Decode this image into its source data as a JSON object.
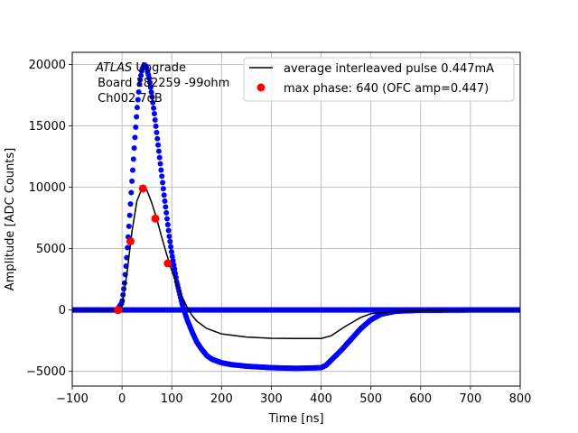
{
  "chart_data": {
    "type": "scatter",
    "xlabel": "Time [ns]",
    "ylabel": "Amplitude [ADC Counts]",
    "xlim": [
      -100,
      800
    ],
    "ylim": [
      -6200,
      21000
    ],
    "x_ticks": [
      -100,
      0,
      100,
      200,
      300,
      400,
      500,
      600,
      700,
      800
    ],
    "x_tick_labels": [
      "−100",
      "0",
      "100",
      "200",
      "300",
      "400",
      "500",
      "600",
      "700",
      "800"
    ],
    "y_ticks": [
      -5000,
      0,
      5000,
      10000,
      15000,
      20000
    ],
    "y_tick_labels": [
      "−5000",
      "0",
      "5000",
      "10000",
      "15000",
      "20000"
    ],
    "grid": true,
    "legend_placement": "top-right",
    "annotation": {
      "italic": "ATLAS",
      "line1_rest": " Upgrade",
      "line2": " Board 182259 -99ohm",
      "line3": " Ch002 7dB"
    },
    "series": [
      {
        "name": "average interleaved pulse 0.447mA",
        "style": "line",
        "color": "#000000",
        "x": [
          -100,
          -10,
          0,
          10,
          20,
          30,
          40,
          45,
          50,
          60,
          70,
          80,
          90,
          100,
          110,
          120,
          130,
          140,
          150,
          170,
          200,
          250,
          300,
          350,
          400,
          420,
          450,
          480,
          500,
          550,
          600,
          700,
          800
        ],
        "y": [
          0,
          0,
          300,
          3000,
          6400,
          8900,
          9900,
          10000,
          9750,
          8700,
          7400,
          5900,
          4500,
          3200,
          2100,
          1150,
          300,
          -400,
          -900,
          -1500,
          -1950,
          -2200,
          -2300,
          -2320,
          -2320,
          -2100,
          -1300,
          -600,
          -300,
          -120,
          -50,
          0,
          0
        ]
      },
      {
        "name": "",
        "style": "dots",
        "color": "#0000ff",
        "x": [
          -100,
          -10,
          0,
          5,
          10,
          15,
          20,
          25,
          30,
          35,
          40,
          45,
          50,
          55,
          60,
          65,
          70,
          75,
          80,
          85,
          90,
          95,
          100,
          110,
          120,
          130,
          140,
          150,
          160,
          170,
          180,
          200,
          220,
          250,
          300,
          350,
          400,
          410,
          420,
          440,
          460,
          480,
          500,
          520,
          550,
          600,
          700,
          800
        ],
        "y": [
          0,
          0,
          600,
          2200,
          4500,
          7400,
          10500,
          13500,
          16300,
          18400,
          19600,
          20000,
          19700,
          18800,
          17500,
          16000,
          14300,
          12600,
          10900,
          9200,
          7600,
          6000,
          4600,
          2300,
          600,
          -700,
          -1700,
          -2600,
          -3200,
          -3700,
          -4000,
          -4300,
          -4450,
          -4580,
          -4700,
          -4750,
          -4700,
          -4500,
          -4100,
          -3300,
          -2400,
          -1500,
          -800,
          -350,
          -100,
          -20,
          0,
          0
        ]
      },
      {
        "name": "",
        "style": "dots",
        "color": "#0000ff",
        "x": [
          -100,
          800
        ],
        "y": [
          0,
          0
        ]
      },
      {
        "name": "max phase: 640 (OFC amp=0.447)",
        "style": "markers",
        "color": "#ff0000",
        "x": [
          -8,
          17,
          42,
          67,
          92
        ],
        "y": [
          0,
          5600,
          9900,
          7450,
          3800
        ]
      }
    ]
  }
}
